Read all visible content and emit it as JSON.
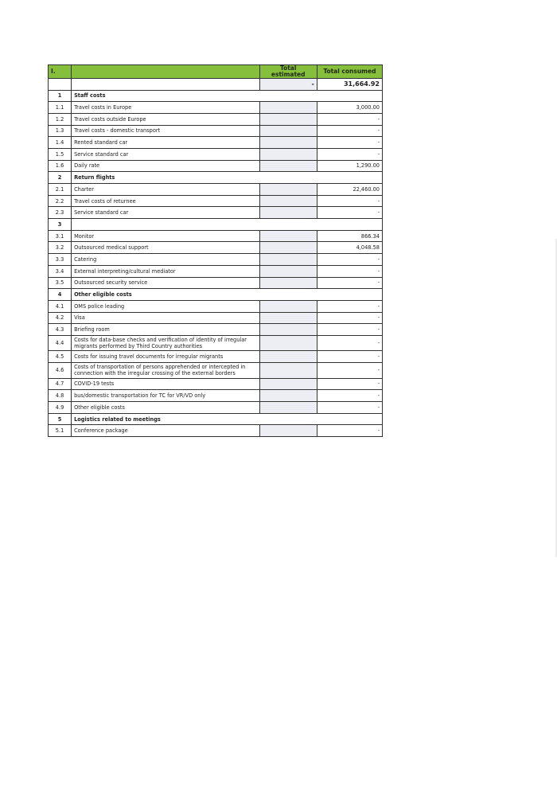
{
  "header": {
    "section": "I.",
    "col_estimated": "Total estimated",
    "col_consumed": "Total consumed"
  },
  "total": {
    "estimated": "-",
    "consumed": "31,664.92"
  },
  "rows": [
    {
      "num": "1",
      "label": "Staff costs",
      "section": true
    },
    {
      "num": "1.1",
      "label": "Travel costs in Europe",
      "consumed": "3,000.00"
    },
    {
      "num": "1.2",
      "label": "Travel costs outside Europe",
      "consumed": "-"
    },
    {
      "num": "1.3",
      "label": "Travel costs - domestic transport",
      "consumed": "-"
    },
    {
      "num": "1.4",
      "label": "Rented standard car",
      "consumed": "-"
    },
    {
      "num": "1.5",
      "label": "Service standard car",
      "consumed": "-"
    },
    {
      "num": "1.6",
      "label": "Daily rate",
      "consumed": "1,290.00"
    },
    {
      "num": "2",
      "label": "Return flights",
      "section": true
    },
    {
      "num": "2.1",
      "label": "Charter",
      "consumed": "22,460.00"
    },
    {
      "num": "2.2",
      "label": "Travel costs of returnee",
      "consumed": "-"
    },
    {
      "num": "2.3",
      "label": "Service standard car",
      "consumed": "-"
    },
    {
      "num": "3",
      "label": "",
      "section": true
    },
    {
      "num": "3.1",
      "label": "Monitor",
      "consumed": "866.34"
    },
    {
      "num": "3.2",
      "label": "Outsourced medical support",
      "consumed": "4,048.58"
    },
    {
      "num": "3.3",
      "label": "Catering",
      "consumed": "-"
    },
    {
      "num": "3.4",
      "label": "External interpreting/cultural mediator",
      "consumed": "-"
    },
    {
      "num": "3.5",
      "label": "Outsourced security service",
      "consumed": "-"
    },
    {
      "num": "4",
      "label": "Other eligible costs",
      "section": true
    },
    {
      "num": "4.1",
      "label": "OMS police leading",
      "consumed": "-"
    },
    {
      "num": "4.2",
      "label": "Visa",
      "consumed": "-"
    },
    {
      "num": "4.3",
      "label": "Briefing room",
      "consumed": "-"
    },
    {
      "num": "4.4",
      "label": "Costs for data-base checks and verification of identity of irregular migrants performed by Third Country authorities",
      "consumed": "-",
      "double": true
    },
    {
      "num": "4.5",
      "label": "Costs for issuing travel documents for irregular migrants",
      "consumed": "-"
    },
    {
      "num": "4.6",
      "label": "Costs of transportation of persons apprehended or intercepted in connection with the irregular crossing of the external borders",
      "consumed": "-",
      "double": true
    },
    {
      "num": "4.7",
      "label": "COVID-19 tests",
      "consumed": "-"
    },
    {
      "num": "4.8",
      "label": "bus/domestic transportation for TC for VR/VD only",
      "consumed": "-"
    },
    {
      "num": "4.9",
      "label": "Other eligible costs",
      "consumed": "-"
    },
    {
      "num": "5",
      "label": "Logistics related to meetings",
      "section": true
    },
    {
      "num": "5.1",
      "label": "Conference package",
      "consumed": "-"
    }
  ]
}
